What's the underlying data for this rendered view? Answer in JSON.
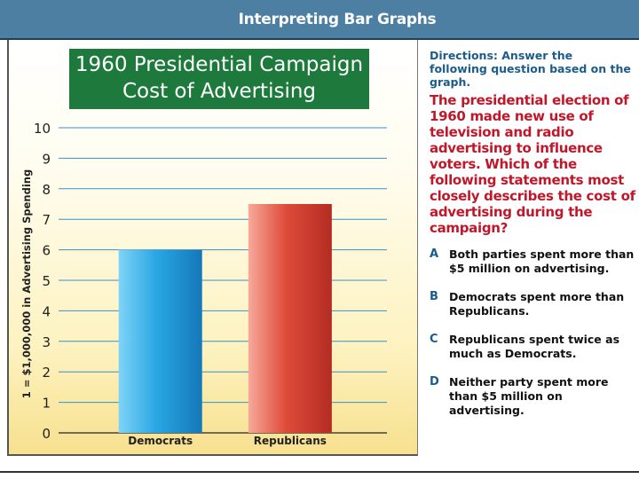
{
  "header": {
    "title": "Interpreting Bar Graphs"
  },
  "chart_data": {
    "type": "bar",
    "title_lines": [
      "1960 Presidential Campaign",
      "Cost of Advertising"
    ],
    "categories": [
      "Democrats",
      "Republicans"
    ],
    "values": [
      6,
      7.5
    ],
    "ylabel": "1 = $1,000,000 in Advertising Spending",
    "xlabel": "",
    "ylim": [
      0,
      10
    ],
    "yticks": [
      0,
      1,
      2,
      3,
      4,
      5,
      6,
      7,
      8,
      9,
      10
    ],
    "grid": true,
    "colors": {
      "Democrats": "#2aa7e4",
      "Republicans": "#de4b3a"
    }
  },
  "directions": "Directions: Answer the following question based on the graph.",
  "question": "The presidential election of 1960 made new use of television and radio advertising to influence voters. Which of the following statements most closely describes the cost of advertising during the campaign?",
  "answers": [
    {
      "letter": "A",
      "text": "Both parties spent more than $5 million on advertising."
    },
    {
      "letter": "B",
      "text": "Democrats spent more than Republicans."
    },
    {
      "letter": "C",
      "text": "Republicans spent twice as much as Democrats."
    },
    {
      "letter": "D",
      "text": "Neither party spent more than $5 million on advertising."
    }
  ]
}
